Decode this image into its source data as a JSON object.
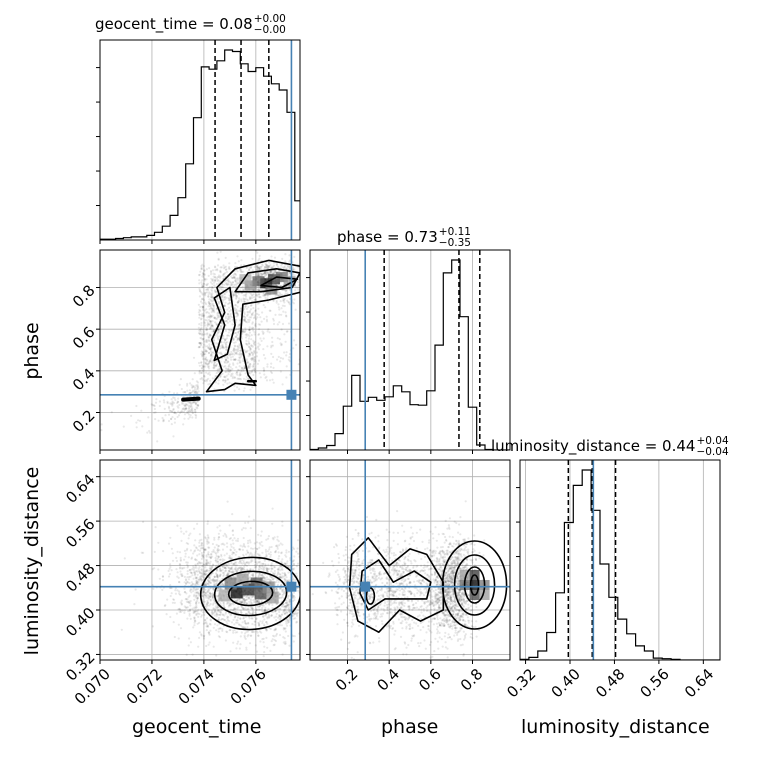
{
  "chart_data": {
    "type": "corner",
    "parameters": [
      "geocent_time",
      "phase",
      "luminosity_distance"
    ],
    "titles": [
      {
        "param": "geocent_time",
        "prefix": "geocent_time = 0.08",
        "plus": "+0.00",
        "minus": "−0.00"
      },
      {
        "param": "phase",
        "prefix": "phase = 0.73",
        "plus": "+0.11",
        "minus": "−0.35"
      },
      {
        "param": "luminosity_distance",
        "prefix": "luminosity_distance = 0.44",
        "plus": "+0.04",
        "minus": "−0.04"
      }
    ],
    "ranges": {
      "geocent_time": [
        0.07,
        0.0777
      ],
      "phase": [
        0.02,
        0.98
      ],
      "luminosity_distance": [
        0.31,
        0.67
      ]
    },
    "ticks": {
      "geocent_time": {
        "values": [
          0.07,
          0.072,
          0.074,
          0.076
        ],
        "labels": [
          "0.070",
          "0.072",
          "0.074",
          "0.076"
        ]
      },
      "phase": {
        "values": [
          0.2,
          0.4,
          0.6,
          0.8
        ],
        "labels": [
          "0.2",
          "0.4",
          "0.6",
          "0.8"
        ]
      },
      "luminosity_distance": {
        "values": [
          0.32,
          0.4,
          0.48,
          0.56,
          0.64
        ],
        "labels": [
          "0.32",
          "0.40",
          "0.48",
          "0.56",
          "0.64"
        ]
      }
    },
    "truths": {
      "geocent_time": 0.07737,
      "phase": 0.285,
      "luminosity_distance": 0.442
    },
    "quantiles": {
      "geocent_time": [
        0.07443,
        0.07543,
        0.0765
      ],
      "phase": [
        0.376,
        0.735,
        0.835
      ],
      "luminosity_distance": [
        0.397,
        0.44,
        0.482
      ]
    },
    "histograms": {
      "geocent_time": {
        "edges_start": 0.07,
        "bin_width": 0.0003,
        "counts": [
          1,
          1,
          2,
          3,
          4,
          4,
          6,
          10,
          18,
          32,
          55,
          99,
          159,
          225,
          222,
          233,
          247,
          245,
          229,
          219,
          224,
          213,
          203,
          195,
          166,
          51,
          11
        ]
      },
      "phase": {
        "edges_start": 0.02,
        "bin_width": 0.04,
        "counts": [
          1,
          4,
          9,
          33,
          88,
          150,
          98,
          106,
          100,
          107,
          129,
          117,
          91,
          90,
          119,
          211,
          356,
          382,
          268,
          86,
          10,
          1,
          0,
          0
        ]
      },
      "luminosity_distance": {
        "edges_start": 0.31,
        "bin_width": 0.016,
        "counts": [
          1,
          4,
          14,
          43,
          105,
          215,
          273,
          297,
          234,
          150,
          98,
          64,
          41,
          22,
          14,
          3,
          2,
          1,
          0,
          0,
          0,
          0,
          0
        ]
      }
    },
    "xlabel_names": [
      "geocent_time",
      "phase",
      "luminosity_distance"
    ],
    "ylabel_names": [
      "phase",
      "luminosity_distance"
    ],
    "colors": {
      "truth": "#4682b4",
      "hist": "#000000",
      "grid": "#b0b0b0",
      "quantile": "#000000"
    }
  }
}
